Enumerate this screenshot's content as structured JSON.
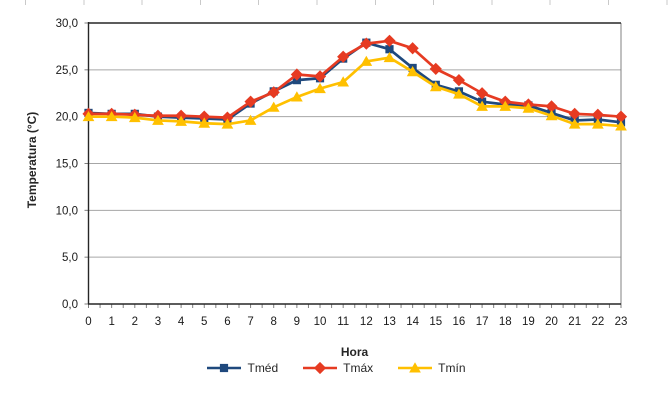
{
  "chart_data": {
    "type": "line",
    "title": "",
    "xlabel": "Hora",
    "ylabel": "Temperatura (°C)",
    "categories": [
      "0",
      "1",
      "2",
      "3",
      "4",
      "5",
      "6",
      "7",
      "8",
      "9",
      "10",
      "11",
      "12",
      "13",
      "14",
      "15",
      "16",
      "17",
      "18",
      "19",
      "20",
      "21",
      "22",
      "23"
    ],
    "series": [
      {
        "name": "Tméd",
        "marker": "square",
        "color": "#1F497D",
        "values": [
          20.4,
          20.3,
          20.3,
          20.0,
          19.9,
          19.8,
          19.7,
          21.4,
          22.7,
          23.9,
          24.1,
          26.2,
          27.9,
          27.2,
          25.2,
          23.4,
          22.7,
          21.6,
          21.3,
          21.2,
          20.4,
          19.6,
          19.7,
          19.4
        ]
      },
      {
        "name": "Tmáx",
        "marker": "diamond",
        "color": "#E63B22",
        "values": [
          20.3,
          20.3,
          20.2,
          20.1,
          20.1,
          20.0,
          19.9,
          21.6,
          22.6,
          24.5,
          24.3,
          26.4,
          27.8,
          28.1,
          27.3,
          25.1,
          23.9,
          22.5,
          21.6,
          21.3,
          21.1,
          20.3,
          20.2,
          20.0
        ]
      },
      {
        "name": "Tmín",
        "marker": "triangle",
        "color": "#FFC000",
        "values": [
          20.0,
          20.0,
          19.9,
          19.6,
          19.5,
          19.3,
          19.2,
          19.6,
          21.0,
          22.1,
          23.0,
          23.7,
          25.9,
          26.3,
          24.8,
          23.2,
          22.4,
          21.1,
          21.1,
          20.9,
          20.1,
          19.2,
          19.2,
          19.0
        ]
      }
    ],
    "ylim": [
      0,
      30
    ],
    "ytick_step": 5,
    "y_tick_labels": [
      "0,0",
      "5,0",
      "10,0",
      "15,0",
      "20,0",
      "25,0",
      "30,0"
    ],
    "grid": "horizontal-major",
    "legend_position": "bottom",
    "number_format": "decimal-comma"
  },
  "colors": {
    "gridline": "#A6A6A6",
    "axis": "#262626",
    "plot_border_right": "#808080",
    "tick": "#7F7F7F",
    "label_text": "#1A1A1A"
  }
}
